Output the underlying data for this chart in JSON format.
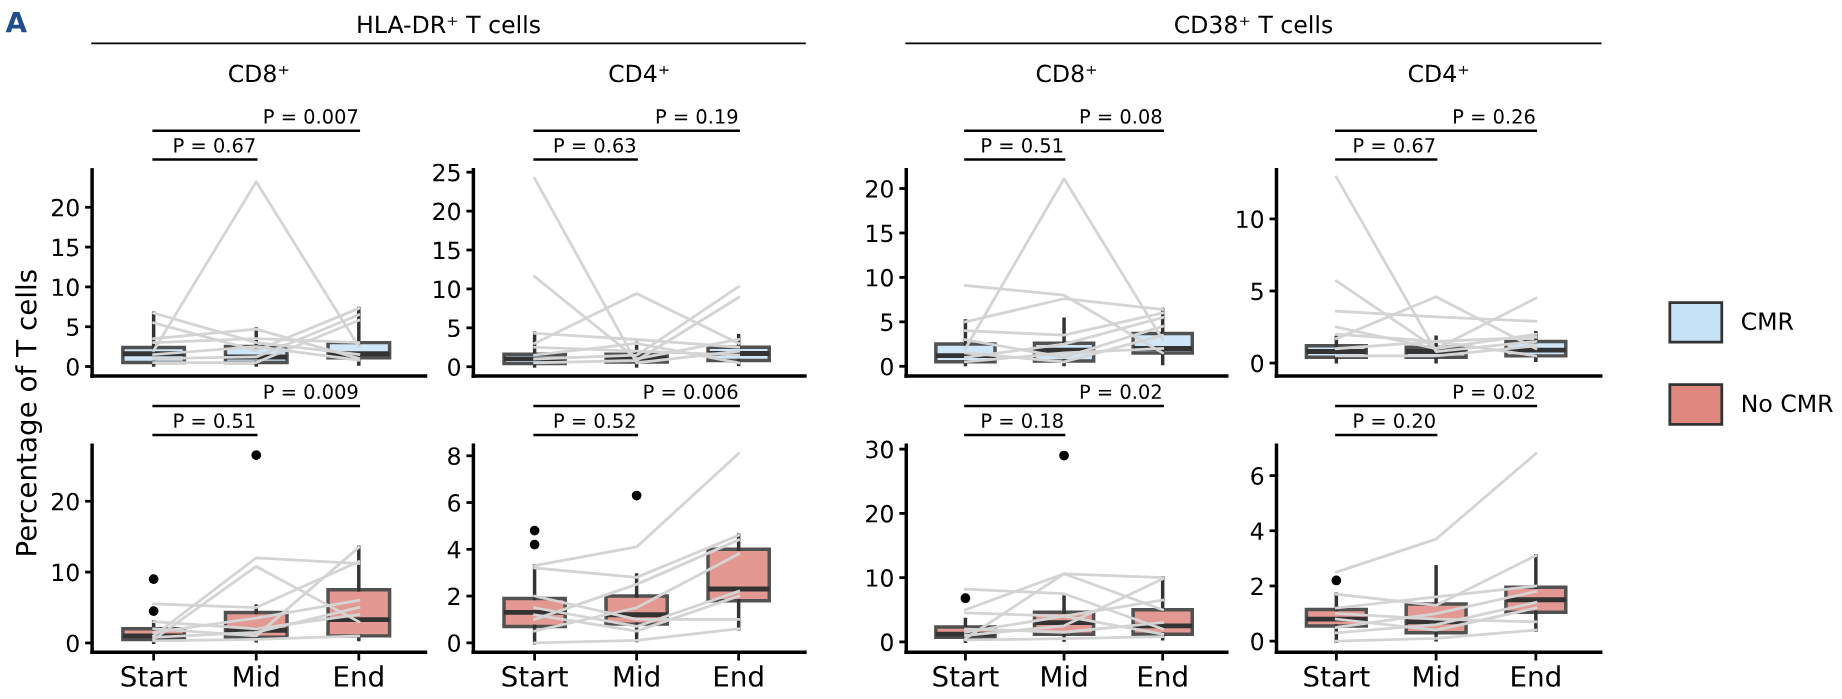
{
  "chart_data": [
    {
      "type": "box",
      "title": "HLA-DR⁺ T cells",
      "subtitle": "CD8⁺",
      "ylabel": "Percentage of T cells",
      "annotations": [
        "A",
        "P = 0.67",
        "P = 0.007"
      ],
      "categories": [
        "Start",
        "Mid",
        "End"
      ],
      "ylim": [
        -1.2,
        24.7
      ],
      "yticks": [
        0,
        5,
        10,
        15,
        20
      ],
      "tick_labels": "y",
      "grid": false,
      "legend": "right",
      "series": [
        {
          "type": "line",
          "color": "#d4d4d4",
          "values": [
            6.7,
            3.0,
            1.5
          ]
        },
        {
          "type": "line",
          "color": "#d4d4d4",
          "values": [
            5.5,
            2.0,
            7.3
          ]
        },
        {
          "type": "line",
          "color": "#d4d4d4",
          "values": [
            3.5,
            4.7,
            1.0
          ]
        },
        {
          "type": "line",
          "color": "#d4d4d4",
          "values": [
            2.0,
            23.2,
            2.5
          ]
        },
        {
          "type": "line",
          "color": "#d4d4d4",
          "values": [
            1.0,
            1.2,
            6.5
          ]
        },
        {
          "type": "line",
          "color": "#d4d4d4",
          "values": [
            0.5,
            0.5,
            5.8
          ]
        },
        {
          "type": "line",
          "color": "#d4d4d4",
          "values": [
            3.0,
            3.5,
            3.0
          ]
        },
        {
          "type": "line",
          "color": "#d4d4d4",
          "values": [
            1.5,
            2.5,
            0.8
          ]
        },
        {
          "type": "box",
          "name": "CMR",
          "color": "#c6e2f7",
          "boxes": [
            {
              "low": 0.2,
              "q1": 0.5,
              "median": 1.6,
              "q3": 2.4,
              "high": 6.7
            },
            {
              "low": 0.2,
              "q1": 0.5,
              "median": 1.2,
              "q3": 2.5,
              "high": 4.7
            },
            {
              "low": 0.3,
              "q1": 1.1,
              "median": 1.6,
              "q3": 3.0,
              "high": 7.3
            }
          ]
        }
      ]
    },
    {
      "type": "box",
      "subtitle": "CD4⁺",
      "annotations": [
        "P = 0.63",
        "P = 0.19"
      ],
      "categories": [
        "Start",
        "Mid",
        "End"
      ],
      "ylim": [
        -1.2,
        25.3
      ],
      "yticks": [
        0,
        5,
        10,
        15,
        20,
        25
      ],
      "tick_labels": "y",
      "grid": false,
      "legend": "right",
      "series": [
        {
          "type": "line",
          "color": "#d4d4d4",
          "values": [
            24.2,
            0.5,
            2.0
          ]
        },
        {
          "type": "line",
          "color": "#d4d4d4",
          "values": [
            11.6,
            1.0,
            3.5
          ]
        },
        {
          "type": "line",
          "color": "#d4d4d4",
          "values": [
            4.3,
            3.5,
            2.5
          ]
        },
        {
          "type": "line",
          "color": "#d4d4d4",
          "values": [
            3.0,
            9.4,
            3.0
          ]
        },
        {
          "type": "line",
          "color": "#d4d4d4",
          "values": [
            1.0,
            1.5,
            10.3
          ]
        },
        {
          "type": "line",
          "color": "#d4d4d4",
          "values": [
            0.5,
            0.8,
            8.9
          ]
        },
        {
          "type": "line",
          "color": "#d4d4d4",
          "values": [
            2.5,
            2.0,
            1.5
          ]
        },
        {
          "type": "line",
          "color": "#d4d4d4",
          "values": [
            1.5,
            3.0,
            0.5
          ]
        },
        {
          "type": "box",
          "name": "CMR",
          "color": "#c6e2f7",
          "boxes": [
            {
              "low": 0.1,
              "q1": 0.4,
              "median": 1.0,
              "q3": 1.6,
              "high": 4.3
            },
            {
              "low": 0.1,
              "q1": 0.6,
              "median": 1.1,
              "q3": 1.6,
              "high": 3.0
            },
            {
              "low": 0.3,
              "q1": 0.8,
              "median": 1.7,
              "q3": 2.5,
              "high": 4.0
            }
          ]
        }
      ]
    },
    {
      "type": "box",
      "title": "CD38⁺ T cells",
      "subtitle": "CD8⁺",
      "annotations": [
        "P = 0.51",
        "P = 0.08"
      ],
      "categories": [
        "Start",
        "Mid",
        "End"
      ],
      "ylim": [
        -1.1,
        22.1
      ],
      "yticks": [
        0,
        5,
        10,
        15,
        20
      ],
      "tick_labels": "y",
      "grid": false,
      "legend": "right",
      "series": [
        {
          "type": "line",
          "color": "#d4d4d4",
          "values": [
            9.1,
            8.0,
            1.5
          ]
        },
        {
          "type": "line",
          "color": "#d4d4d4",
          "values": [
            5.0,
            7.6,
            6.4
          ]
        },
        {
          "type": "line",
          "color": "#d4d4d4",
          "values": [
            4.0,
            3.5,
            6.0
          ]
        },
        {
          "type": "line",
          "color": "#d4d4d4",
          "values": [
            2.0,
            21.1,
            3.0
          ]
        },
        {
          "type": "line",
          "color": "#d4d4d4",
          "values": [
            1.0,
            2.5,
            5.5
          ]
        },
        {
          "type": "line",
          "color": "#d4d4d4",
          "values": [
            3.0,
            1.0,
            4.5
          ]
        },
        {
          "type": "line",
          "color": "#d4d4d4",
          "values": [
            0.5,
            1.5,
            2.0
          ]
        },
        {
          "type": "line",
          "color": "#d4d4d4",
          "values": [
            1.5,
            0.5,
            3.5
          ]
        },
        {
          "type": "box",
          "name": "CMR",
          "color": "#c6e2f7",
          "boxes": [
            {
              "low": 0.2,
              "q1": 0.5,
              "median": 1.2,
              "q3": 2.5,
              "high": 5.1
            },
            {
              "low": 0.2,
              "q1": 0.6,
              "median": 1.8,
              "q3": 2.6,
              "high": 5.3
            },
            {
              "low": 0.3,
              "q1": 1.5,
              "median": 2.0,
              "q3": 3.7,
              "high": 6.4
            }
          ]
        }
      ]
    },
    {
      "type": "box",
      "subtitle": "CD4⁺",
      "annotations": [
        "P = 0.67",
        "P = 0.26"
      ],
      "categories": [
        "Start",
        "Mid",
        "End"
      ],
      "ylim": [
        -0.9,
        13.4
      ],
      "yticks": [
        0,
        5,
        10
      ],
      "tick_labels": "y",
      "grid": false,
      "legend": "right",
      "series": [
        {
          "type": "line",
          "color": "#d4d4d4",
          "values": [
            12.9,
            0.8,
            1.5
          ]
        },
        {
          "type": "line",
          "color": "#d4d4d4",
          "values": [
            5.7,
            1.0,
            2.0
          ]
        },
        {
          "type": "line",
          "color": "#d4d4d4",
          "values": [
            3.6,
            3.2,
            2.9
          ]
        },
        {
          "type": "line",
          "color": "#d4d4d4",
          "values": [
            2.5,
            1.0,
            4.5
          ]
        },
        {
          "type": "line",
          "color": "#d4d4d4",
          "values": [
            1.7,
            4.6,
            1.0
          ]
        },
        {
          "type": "line",
          "color": "#d4d4d4",
          "values": [
            1.0,
            1.5,
            0.5
          ]
        },
        {
          "type": "line",
          "color": "#d4d4d4",
          "values": [
            0.5,
            0.5,
            1.2
          ]
        },
        {
          "type": "line",
          "color": "#d4d4d4",
          "values": [
            2.0,
            1.5,
            1.8
          ]
        },
        {
          "type": "box",
          "name": "CMR",
          "color": "#c6e2f7",
          "boxes": [
            {
              "low": 0.1,
              "q1": 0.4,
              "median": 0.8,
              "q3": 1.2,
              "high": 1.8
            },
            {
              "low": 0.1,
              "q1": 0.4,
              "median": 0.8,
              "q3": 1.1,
              "high": 1.8
            },
            {
              "low": 0.2,
              "q1": 0.5,
              "median": 0.9,
              "q3": 1.5,
              "high": 2.1
            }
          ]
        }
      ]
    },
    {
      "type": "box",
      "annotations": [
        "P = 0.51",
        "P = 0.009"
      ],
      "categories": [
        "Start",
        "Mid",
        "End"
      ],
      "ylim": [
        -1.3,
        27.9
      ],
      "yticks": [
        0,
        10,
        20
      ],
      "grid": false,
      "legend": "right",
      "series": [
        {
          "type": "line",
          "color": "#d4d4d4",
          "values": [
            5.5,
            5.0,
            11.5
          ]
        },
        {
          "type": "line",
          "color": "#d4d4d4",
          "values": [
            1.0,
            12.0,
            11.2
          ]
        },
        {
          "type": "line",
          "color": "#d4d4d4",
          "values": [
            0.5,
            10.8,
            3.0
          ]
        },
        {
          "type": "line",
          "color": "#d4d4d4",
          "values": [
            2.0,
            1.0,
            13.5
          ]
        },
        {
          "type": "line",
          "color": "#d4d4d4",
          "values": [
            1.5,
            3.5,
            6.0
          ]
        },
        {
          "type": "line",
          "color": "#d4d4d4",
          "values": [
            0.3,
            0.5,
            1.0
          ]
        },
        {
          "type": "line",
          "color": "#d4d4d4",
          "values": [
            3.0,
            2.0,
            4.0
          ]
        },
        {
          "type": "line",
          "color": "#d4d4d4",
          "values": [
            0.8,
            1.5,
            5.0
          ]
        },
        {
          "type": "box",
          "name": "No CMR",
          "color": "#e0877f",
          "boxes": [
            {
              "low": 0.1,
              "q1": 0.5,
              "median": 1.0,
              "q3": 2.0,
              "high": 3.0,
              "outliers": [
                4.5,
                9.0
              ]
            },
            {
              "low": 0.3,
              "q1": 0.8,
              "median": 1.8,
              "q3": 4.3,
              "high": 5.2,
              "outliers": [
                26.5
              ]
            },
            {
              "low": 0.5,
              "q1": 1.0,
              "median": 3.3,
              "q3": 7.5,
              "high": 13.5
            }
          ]
        }
      ]
    },
    {
      "type": "box",
      "annotations": [
        "P = 0.52",
        "P = 0.006"
      ],
      "categories": [
        "Start",
        "Mid",
        "End"
      ],
      "ylim": [
        -0.4,
        8.45
      ],
      "yticks": [
        0,
        2,
        4,
        6,
        8
      ],
      "grid": false,
      "legend": "right",
      "series": [
        {
          "type": "line",
          "color": "#d4d4d4",
          "values": [
            3.3,
            4.1,
            8.1
          ]
        },
        {
          "type": "line",
          "color": "#d4d4d4",
          "values": [
            3.2,
            2.8,
            4.6
          ]
        },
        {
          "type": "line",
          "color": "#d4d4d4",
          "values": [
            1.0,
            2.5,
            4.4
          ]
        },
        {
          "type": "line",
          "color": "#d4d4d4",
          "values": [
            0.5,
            1.5,
            3.8
          ]
        },
        {
          "type": "line",
          "color": "#d4d4d4",
          "values": [
            1.5,
            0.7,
            2.2
          ]
        },
        {
          "type": "line",
          "color": "#d4d4d4",
          "values": [
            0.0,
            0.1,
            0.6
          ]
        },
        {
          "type": "line",
          "color": "#d4d4d4",
          "values": [
            2.0,
            1.0,
            1.0
          ]
        },
        {
          "type": "line",
          "color": "#d4d4d4",
          "values": [
            1.2,
            0.5,
            2.0
          ]
        },
        {
          "type": "box",
          "name": "No CMR",
          "color": "#e0877f",
          "boxes": [
            {
              "low": 0.0,
              "q1": 0.7,
              "median": 1.3,
              "q3": 1.9,
              "high": 3.3,
              "outliers": [
                4.2,
                4.8
              ]
            },
            {
              "low": 0.1,
              "q1": 0.8,
              "median": 1.2,
              "q3": 2.0,
              "high": 2.9,
              "outliers": [
                6.3
              ]
            },
            {
              "low": 0.6,
              "q1": 1.8,
              "median": 2.3,
              "q3": 4.0,
              "high": 4.6
            }
          ]
        }
      ]
    },
    {
      "type": "box",
      "annotations": [
        "P = 0.18",
        "P = 0.02"
      ],
      "categories": [
        "Start",
        "Mid",
        "End"
      ],
      "ylim": [
        -1.6,
        30.6
      ],
      "yticks": [
        0,
        10,
        20,
        30
      ],
      "grid": false,
      "legend": "right",
      "series": [
        {
          "type": "line",
          "color": "#d4d4d4",
          "values": [
            8.2,
            7.5,
            2.0
          ]
        },
        {
          "type": "line",
          "color": "#d4d4d4",
          "values": [
            5.0,
            10.6,
            5.0
          ]
        },
        {
          "type": "line",
          "color": "#d4d4d4",
          "values": [
            0.5,
            10.6,
            10.0
          ]
        },
        {
          "type": "line",
          "color": "#d4d4d4",
          "values": [
            4.5,
            4.0,
            6.5
          ]
        },
        {
          "type": "line",
          "color": "#d4d4d4",
          "values": [
            1.0,
            2.5,
            9.8
          ]
        },
        {
          "type": "line",
          "color": "#d4d4d4",
          "values": [
            0.3,
            0.5,
            0.8
          ]
        },
        {
          "type": "line",
          "color": "#d4d4d4",
          "values": [
            2.0,
            1.5,
            3.0
          ]
        },
        {
          "type": "line",
          "color": "#d4d4d4",
          "values": [
            1.5,
            4.0,
            1.2
          ]
        },
        {
          "type": "box",
          "name": "No CMR",
          "color": "#e0877f",
          "boxes": [
            {
              "low": 0.1,
              "q1": 0.7,
              "median": 1.2,
              "q3": 2.3,
              "high": 3.5,
              "outliers": [
                6.8
              ]
            },
            {
              "low": 0.3,
              "q1": 1.2,
              "median": 3.0,
              "q3": 4.6,
              "high": 7.0,
              "outliers": [
                29
              ]
            },
            {
              "low": 0.5,
              "q1": 1.2,
              "median": 2.5,
              "q3": 5.0,
              "high": 10.0
            }
          ]
        }
      ]
    },
    {
      "type": "box",
      "annotations": [
        "P = 0.20",
        "P = 0.02"
      ],
      "categories": [
        "Start",
        "Mid",
        "End"
      ],
      "ylim": [
        -0.4,
        7.1
      ],
      "yticks": [
        0,
        2,
        4,
        6
      ],
      "grid": false,
      "legend": "right",
      "series": [
        {
          "type": "line",
          "color": "#d4d4d4",
          "values": [
            2.5,
            3.7,
            6.8
          ]
        },
        {
          "type": "line",
          "color": "#d4d4d4",
          "values": [
            1.7,
            1.3,
            3.1
          ]
        },
        {
          "type": "line",
          "color": "#d4d4d4",
          "values": [
            1.2,
            1.6,
            2.0
          ]
        },
        {
          "type": "line",
          "color": "#d4d4d4",
          "values": [
            0.5,
            1.0,
            1.8
          ]
        },
        {
          "type": "line",
          "color": "#d4d4d4",
          "values": [
            0.8,
            0.4,
            1.2
          ]
        },
        {
          "type": "line",
          "color": "#d4d4d4",
          "values": [
            0.0,
            0.1,
            0.4
          ]
        },
        {
          "type": "line",
          "color": "#d4d4d4",
          "values": [
            1.0,
            0.8,
            0.7
          ]
        },
        {
          "type": "line",
          "color": "#d4d4d4",
          "values": [
            0.3,
            0.6,
            1.4
          ]
        },
        {
          "type": "box",
          "name": "No CMR",
          "color": "#e0877f",
          "boxes": [
            {
              "low": 0.0,
              "q1": 0.55,
              "median": 0.8,
              "q3": 1.15,
              "high": 1.7,
              "outliers": [
                2.2
              ]
            },
            {
              "low": 0.05,
              "q1": 0.3,
              "median": 0.7,
              "q3": 1.35,
              "high": 2.7
            },
            {
              "low": 0.4,
              "q1": 1.05,
              "median": 1.5,
              "q3": 1.95,
              "high": 3.1
            }
          ]
        }
      ]
    }
  ]
}
